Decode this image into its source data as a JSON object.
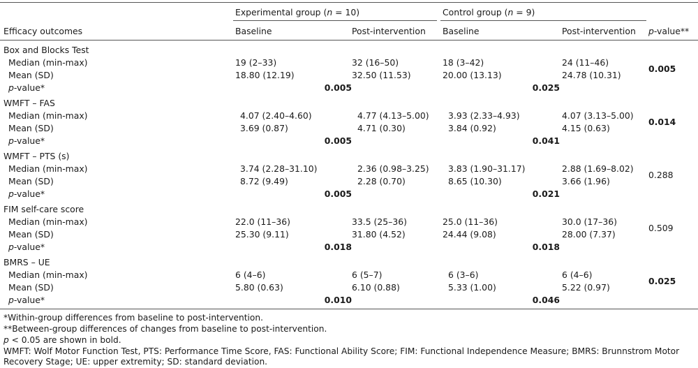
{
  "header": {
    "exp_group_prefix": "Experimental group (",
    "exp_group_n": "n",
    "exp_group_suffix": " = 10)",
    "ctrl_group_prefix": "Control group (",
    "ctrl_group_n": "n",
    "ctrl_group_suffix": " = 9)",
    "efficacy_outcomes": "Efficacy outcomes",
    "baseline": "Baseline",
    "post_intervention": "Post-intervention",
    "pvalue_italic": "p",
    "pvalue_rest": "-value**"
  },
  "row_labels": {
    "median": "Median (min-max)",
    "mean": "Mean (SD)",
    "pvalue_italic": "p",
    "pvalue_rest": "-value*"
  },
  "sections": [
    {
      "title": "Box and Blocks Test",
      "median": [
        "19 (2–33)",
        "32 (16–50)",
        "18 (3–42)",
        "24 (11–46)"
      ],
      "mean": [
        "18.80 (12.19)",
        "32.50 (11.53)",
        "20.00 (13.13)",
        "24.78 (10.31)"
      ],
      "within_exp": "0.005",
      "within_ctrl": "0.025",
      "between": "0.005",
      "between_bold": true
    },
    {
      "title": "WMFT – FAS",
      "median": [
        "4.07 (2.40–4.60)",
        "4.77 (4.13–5.00)",
        "3.93 (2.33–4.93)",
        "4.07 (3.13–5.00)"
      ],
      "mean": [
        "3.69 (0.87)",
        "4.71 (0.30)",
        "3.84 (0.92)",
        "4.15 (0.63)"
      ],
      "within_exp": "0.005",
      "within_ctrl": "0.041",
      "between": "0.014",
      "between_bold": true
    },
    {
      "title": "WMFT – PTS (s)",
      "median": [
        "3.74 (2.28–31.10)",
        "2.36 (0.98–3.25)",
        "3.83 (1.90–31.17)",
        "2.88 (1.69–8.02)"
      ],
      "mean": [
        "8.72 (9.49)",
        "2.28 (0.70)",
        "8.65 (10.30)",
        "3.66 (1.96)"
      ],
      "within_exp": "0.005",
      "within_ctrl": "0.021",
      "between": "0.288",
      "between_bold": false
    },
    {
      "title": "FIM self-care score",
      "median": [
        "22.0 (11–36)",
        "33.5 (25–36)",
        "25.0 (11–36)",
        "30.0 (17–36)"
      ],
      "mean": [
        "25.30 (9.11)",
        "31.80 (4.52)",
        "24.44 (9.08)",
        "28.00 (7.37)"
      ],
      "within_exp": "0.018",
      "within_ctrl": "0.018",
      "between": "0.509",
      "between_bold": false
    },
    {
      "title": "BMRS – UE",
      "median": [
        "6 (4–6)",
        "6 (5–7)",
        "6 (3–6)",
        "6 (4–6)"
      ],
      "mean": [
        "5.80 (0.63)",
        "6.10 (0.88)",
        "5.33 (1.00)",
        "5.22 (0.97)"
      ],
      "within_exp": "0.010",
      "within_ctrl": "0.046",
      "between": "0.025",
      "between_bold": true
    }
  ],
  "footnotes": {
    "f1": "*Within-group differences from baseline to post-intervention.",
    "f2": "**Between-group differences of changes from baseline to post-intervention.",
    "f3_italic": "p",
    "f3_rest": " < 0.05 are shown in bold.",
    "f4": "WMFT: Wolf Motor Function Test, PTS: Performance Time Score, FAS: Functional Ability Score; FIM: Functional Independence Measure; BMRS: Brunnstrom Motor",
    "f5": "Recovery Stage; UE: upper extremity; SD: standard deviation."
  }
}
